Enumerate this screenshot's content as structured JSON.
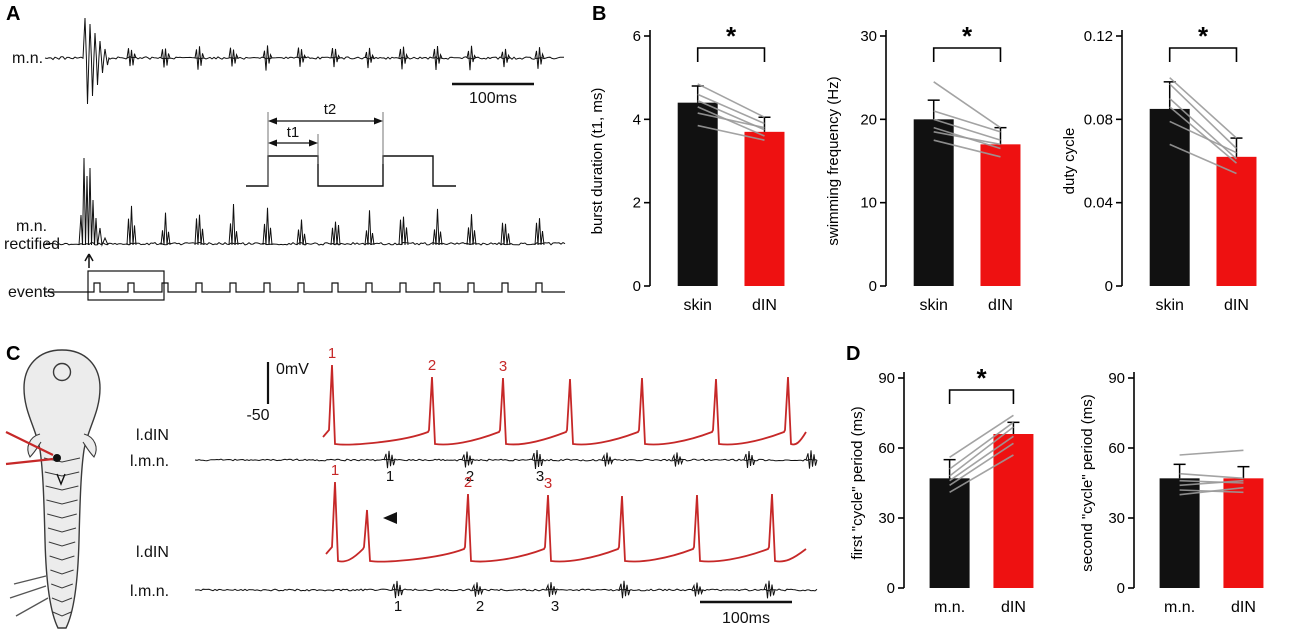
{
  "colors": {
    "red_bar": "#ee1111",
    "red_trace": "#c62828",
    "black": "#111111",
    "gray_pair_lines": "#9a9a9a"
  },
  "figure": {
    "panels": {
      "A": {
        "label": "A",
        "mn_label": "m.n.",
        "rectified_label_line1": "m.n.",
        "rectified_label_line2": "rectified",
        "events_label": "events",
        "scalebar_label": "100ms",
        "t1_label": "t1",
        "t2_label": "t2"
      },
      "B": {
        "label": "B"
      },
      "C": {
        "label": "C",
        "din_label": "l.dIN",
        "mn_label": "l.m.n.",
        "voltage_top": "0mV",
        "voltage_bottom": "-50",
        "scalebar_label": "100ms",
        "spike_numbers": [
          "1",
          "2",
          "3"
        ]
      },
      "D": {
        "label": "D"
      }
    }
  },
  "chart_data": [
    {
      "id": "burst-duration",
      "type": "bar",
      "panel": "B",
      "ylabel": "burst duration (t1, ms)",
      "categories": [
        "skin",
        "dIN"
      ],
      "values": [
        4.4,
        3.7
      ],
      "errors": [
        0.4,
        0.35
      ],
      "colors": [
        "#111111",
        "#ee1111"
      ],
      "ylim": [
        0,
        6
      ],
      "yticks": [
        0,
        2,
        4,
        6
      ],
      "ytick_labels": [
        "0",
        "2",
        "4",
        "6"
      ],
      "significance": "*",
      "paired_lines": [
        [
          4.85,
          4.05
        ],
        [
          4.6,
          3.9
        ],
        [
          4.45,
          3.75
        ],
        [
          4.3,
          3.6
        ],
        [
          4.15,
          3.8
        ],
        [
          3.85,
          3.5
        ]
      ]
    },
    {
      "id": "swimming-frequency",
      "type": "bar",
      "panel": "B",
      "ylabel": "swimming frequency (Hz)",
      "categories": [
        "skin",
        "dIN"
      ],
      "values": [
        20,
        17
      ],
      "errors": [
        2.3,
        2.0
      ],
      "colors": [
        "#111111",
        "#ee1111"
      ],
      "ylim": [
        0,
        30
      ],
      "yticks": [
        0,
        10,
        20,
        30
      ],
      "ytick_labels": [
        "0",
        "10",
        "20",
        "30"
      ],
      "significance": "*",
      "paired_lines": [
        [
          24.5,
          19.0
        ],
        [
          21.0,
          18.5
        ],
        [
          20.0,
          17.5
        ],
        [
          19.0,
          16.5
        ],
        [
          18.5,
          17.0
        ],
        [
          17.5,
          15.5
        ]
      ]
    },
    {
      "id": "duty-cycle",
      "type": "bar",
      "panel": "B",
      "ylabel": "duty cycle",
      "categories": [
        "skin",
        "dIN"
      ],
      "values": [
        0.085,
        0.062
      ],
      "errors": [
        0.013,
        0.009
      ],
      "colors": [
        "#111111",
        "#ee1111"
      ],
      "ylim": [
        0,
        0.12
      ],
      "yticks": [
        0,
        0.04,
        0.08,
        0.12
      ],
      "ytick_labels": [
        "0",
        "0.04",
        "0.08",
        "0.12"
      ],
      "significance": "*",
      "paired_lines": [
        [
          0.1,
          0.071
        ],
        [
          0.097,
          0.066
        ],
        [
          0.09,
          0.061
        ],
        [
          0.086,
          0.059
        ],
        [
          0.079,
          0.064
        ],
        [
          0.068,
          0.054
        ]
      ]
    },
    {
      "id": "first-cycle-period",
      "type": "bar",
      "panel": "D",
      "ylabel": "first \"cycle\" period (ms)",
      "categories": [
        "m.n.",
        "dIN"
      ],
      "values": [
        47,
        66
      ],
      "errors": [
        8,
        5
      ],
      "colors": [
        "#111111",
        "#ee1111"
      ],
      "ylim": [
        0,
        90
      ],
      "yticks": [
        0,
        30,
        60,
        90
      ],
      "ytick_labels": [
        "0",
        "30",
        "60",
        "90"
      ],
      "significance": "*",
      "paired_lines": [
        [
          41,
          57
        ],
        [
          44,
          62
        ],
        [
          46,
          65
        ],
        [
          48,
          69
        ],
        [
          51,
          71
        ],
        [
          56,
          74
        ]
      ]
    },
    {
      "id": "second-cycle-period",
      "type": "bar",
      "panel": "D",
      "ylabel": "second \"cycle\" period (ms)",
      "categories": [
        "m.n.",
        "dIN"
      ],
      "values": [
        47,
        47
      ],
      "errors": [
        6,
        5
      ],
      "colors": [
        "#111111",
        "#ee1111"
      ],
      "ylim": [
        0,
        90
      ],
      "yticks": [
        0,
        30,
        60,
        90
      ],
      "ytick_labels": [
        "0",
        "30",
        "60",
        "90"
      ],
      "significance": null,
      "paired_lines": [
        [
          57,
          59
        ],
        [
          49,
          47
        ],
        [
          46,
          45
        ],
        [
          44,
          46
        ],
        [
          42,
          41
        ],
        [
          40,
          43
        ]
      ]
    }
  ]
}
